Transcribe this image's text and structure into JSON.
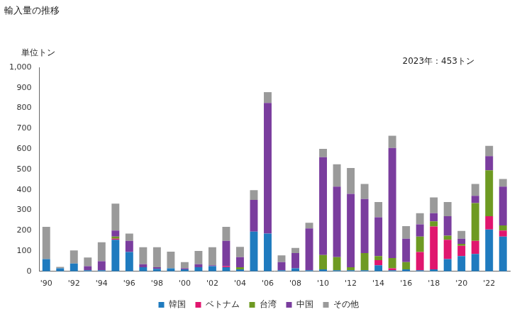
{
  "chart_data": {
    "type": "bar",
    "title": "輸入量の推移",
    "ylabel": "単位トン",
    "annotations": [
      "2023年：453トン"
    ],
    "stacked": true,
    "grid": false,
    "legend": "bottom",
    "categories": [
      "'90",
      null,
      "'92",
      null,
      "'94",
      null,
      "'96",
      null,
      "'98",
      null,
      "'00",
      null,
      "'02",
      null,
      "'04",
      null,
      "'06",
      null,
      "'08",
      null,
      "'10",
      null,
      "'12",
      null,
      "'14",
      null,
      "'16",
      null,
      "'18",
      null,
      "'20",
      null,
      "'22",
      null
    ],
    "series": [
      {
        "name": "韓国",
        "color": "#1f7bbf",
        "values": [
          60,
          15,
          38,
          5,
          5,
          155,
          95,
          20,
          12,
          15,
          10,
          20,
          25,
          20,
          10,
          195,
          185,
          5,
          15,
          5,
          10,
          5,
          5,
          5,
          30,
          5,
          10,
          5,
          10,
          60,
          75,
          85,
          205,
          170
        ]
      },
      {
        "name": "ベトナム",
        "color": "#e0166e",
        "values": [
          0,
          0,
          0,
          0,
          0,
          5,
          0,
          0,
          0,
          0,
          0,
          0,
          0,
          5,
          0,
          0,
          0,
          0,
          0,
          0,
          0,
          0,
          0,
          0,
          25,
          10,
          0,
          90,
          210,
          95,
          50,
          65,
          65,
          30
        ]
      },
      {
        "name": "台湾",
        "color": "#6e9a22",
        "values": [
          0,
          0,
          0,
          0,
          0,
          10,
          0,
          0,
          0,
          0,
          0,
          0,
          0,
          0,
          10,
          0,
          0,
          0,
          0,
          0,
          70,
          65,
          15,
          85,
          20,
          50,
          35,
          75,
          25,
          20,
          10,
          185,
          225,
          25
        ]
      },
      {
        "name": "中国",
        "color": "#7a3d9e",
        "values": [
          0,
          0,
          0,
          20,
          45,
          30,
          55,
          15,
          8,
          0,
          5,
          15,
          5,
          125,
          50,
          155,
          640,
          40,
          75,
          205,
          480,
          345,
          360,
          265,
          190,
          540,
          115,
          60,
          40,
          95,
          25,
          35,
          70,
          190
        ]
      },
      {
        "name": "その他",
        "color": "#9a9a9a",
        "values": [
          158,
          7,
          65,
          43,
          93,
          132,
          35,
          83,
          98,
          82,
          30,
          65,
          88,
          68,
          50,
          48,
          53,
          33,
          25,
          28,
          40,
          110,
          127,
          73,
          75,
          60,
          62,
          55,
          77,
          70,
          38,
          58,
          50,
          38
        ]
      }
    ],
    "ylim": [
      0,
      1000
    ],
    "yticks": [
      0,
      100,
      200,
      300,
      400,
      500,
      600,
      700,
      800,
      900,
      {
        "value": 1000,
        "label": "1,000"
      }
    ]
  }
}
